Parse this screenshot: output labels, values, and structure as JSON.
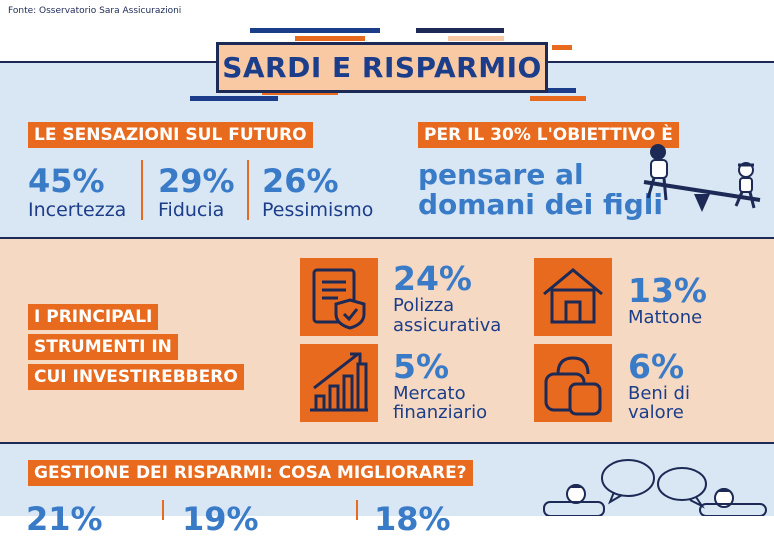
{
  "source": "Fonte: Osservatorio Sara Assicurazioni",
  "title": "SARDI E RISPARMIO",
  "section1": {
    "heading": "LE SENSAZIONI SUL FUTURO",
    "items": [
      {
        "pct": "45%",
        "label": "Incertezza"
      },
      {
        "pct": "29%",
        "label": "Fiducia"
      },
      {
        "pct": "26%",
        "label": "Pessimismo"
      }
    ]
  },
  "section2": {
    "heading": "PER IL 30% L'OBIETTIVO È",
    "line1": "pensare al",
    "line2": "domani dei figli"
  },
  "section3": {
    "heading_lines": [
      "I PRINCIPALI",
      "STRUMENTI IN",
      "CUI INVESTIREBBERO"
    ],
    "items": [
      {
        "pct": "24%",
        "label1": "Polizza",
        "label2": "assicurativa",
        "icon": "insurance-document-icon"
      },
      {
        "pct": "13%",
        "label1": "Mattone",
        "label2": "",
        "icon": "house-icon"
      },
      {
        "pct": "5%",
        "label1": "Mercato",
        "label2": "finanziario",
        "icon": "growth-chart-icon"
      },
      {
        "pct": "6%",
        "label1": "Beni di",
        "label2": "valore",
        "icon": "bag-icon"
      }
    ]
  },
  "section4": {
    "heading": "GESTIONE DEI RISPARMI: COSA MIGLIORARE?",
    "partial_values": [
      "21%",
      "19%",
      "18%"
    ]
  },
  "colors": {
    "navy": "#1c2a55",
    "blue": "#3a7bc8",
    "orange": "#e86a1e",
    "light_blue": "#d9e6f3",
    "peach": "#f6d9c2"
  }
}
